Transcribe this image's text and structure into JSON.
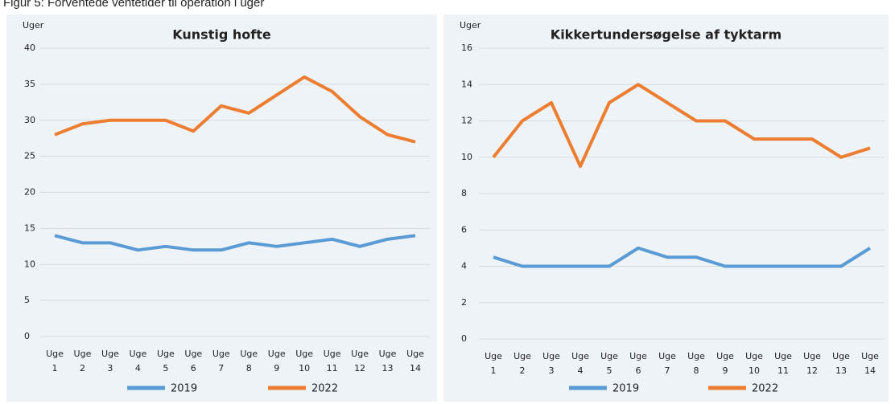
{
  "figure_title": "Figur 5: Forventede ventetider til operation i uger",
  "chart_data": [
    {
      "type": "line",
      "title": "Kunstig hofte",
      "y_label": "Uger",
      "categories": [
        "Uge 1",
        "Uge 2",
        "Uge 3",
        "Uge 4",
        "Uge 5",
        "Uge 6",
        "Uge 7",
        "Uge 8",
        "Uge 9",
        "Uge 10",
        "Uge 11",
        "Uge 12",
        "Uge 13",
        "Uge 14"
      ],
      "series": [
        {
          "name": "2019",
          "color": "#5b9bd5",
          "values": [
            14,
            13,
            13,
            12,
            12.5,
            12,
            12,
            13,
            12.5,
            13,
            13.5,
            12.5,
            13.5,
            14
          ]
        },
        {
          "name": "2022",
          "color": "#ed7d31",
          "values": [
            28,
            29.5,
            30,
            30,
            30,
            28.5,
            32,
            31,
            33.5,
            36,
            34,
            30.5,
            28,
            27
          ]
        }
      ],
      "ylim": [
        0,
        40
      ],
      "yticks": [
        0,
        5,
        10,
        15,
        20,
        25,
        30,
        35,
        40
      ],
      "grid": true,
      "legend": "bottom"
    },
    {
      "type": "line",
      "title": "Kikkertundersøgelse af tyktarm",
      "y_label": "Uger",
      "categories": [
        "Uge 1",
        "Uge 2",
        "Uge 3",
        "Uge 4",
        "Uge 5",
        "Uge 6",
        "Uge 7",
        "Uge 8",
        "Uge 9",
        "Uge 10",
        "Uge 11",
        "Uge 12",
        "Uge 13",
        "Uge 14"
      ],
      "series": [
        {
          "name": "2019",
          "color": "#5b9bd5",
          "values": [
            4.5,
            4,
            4,
            4,
            4,
            5,
            4.5,
            4.5,
            4,
            4,
            4,
            4,
            4,
            5
          ]
        },
        {
          "name": "2022",
          "color": "#ed7d31",
          "values": [
            10,
            12,
            13,
            9.5,
            13,
            14,
            13,
            12,
            12,
            11,
            11,
            11,
            10,
            10.5
          ]
        }
      ],
      "ylim": [
        0,
        16
      ],
      "yticks": [
        0,
        2,
        4,
        6,
        8,
        10,
        12,
        14,
        16
      ],
      "grid": true,
      "legend": "bottom"
    }
  ]
}
